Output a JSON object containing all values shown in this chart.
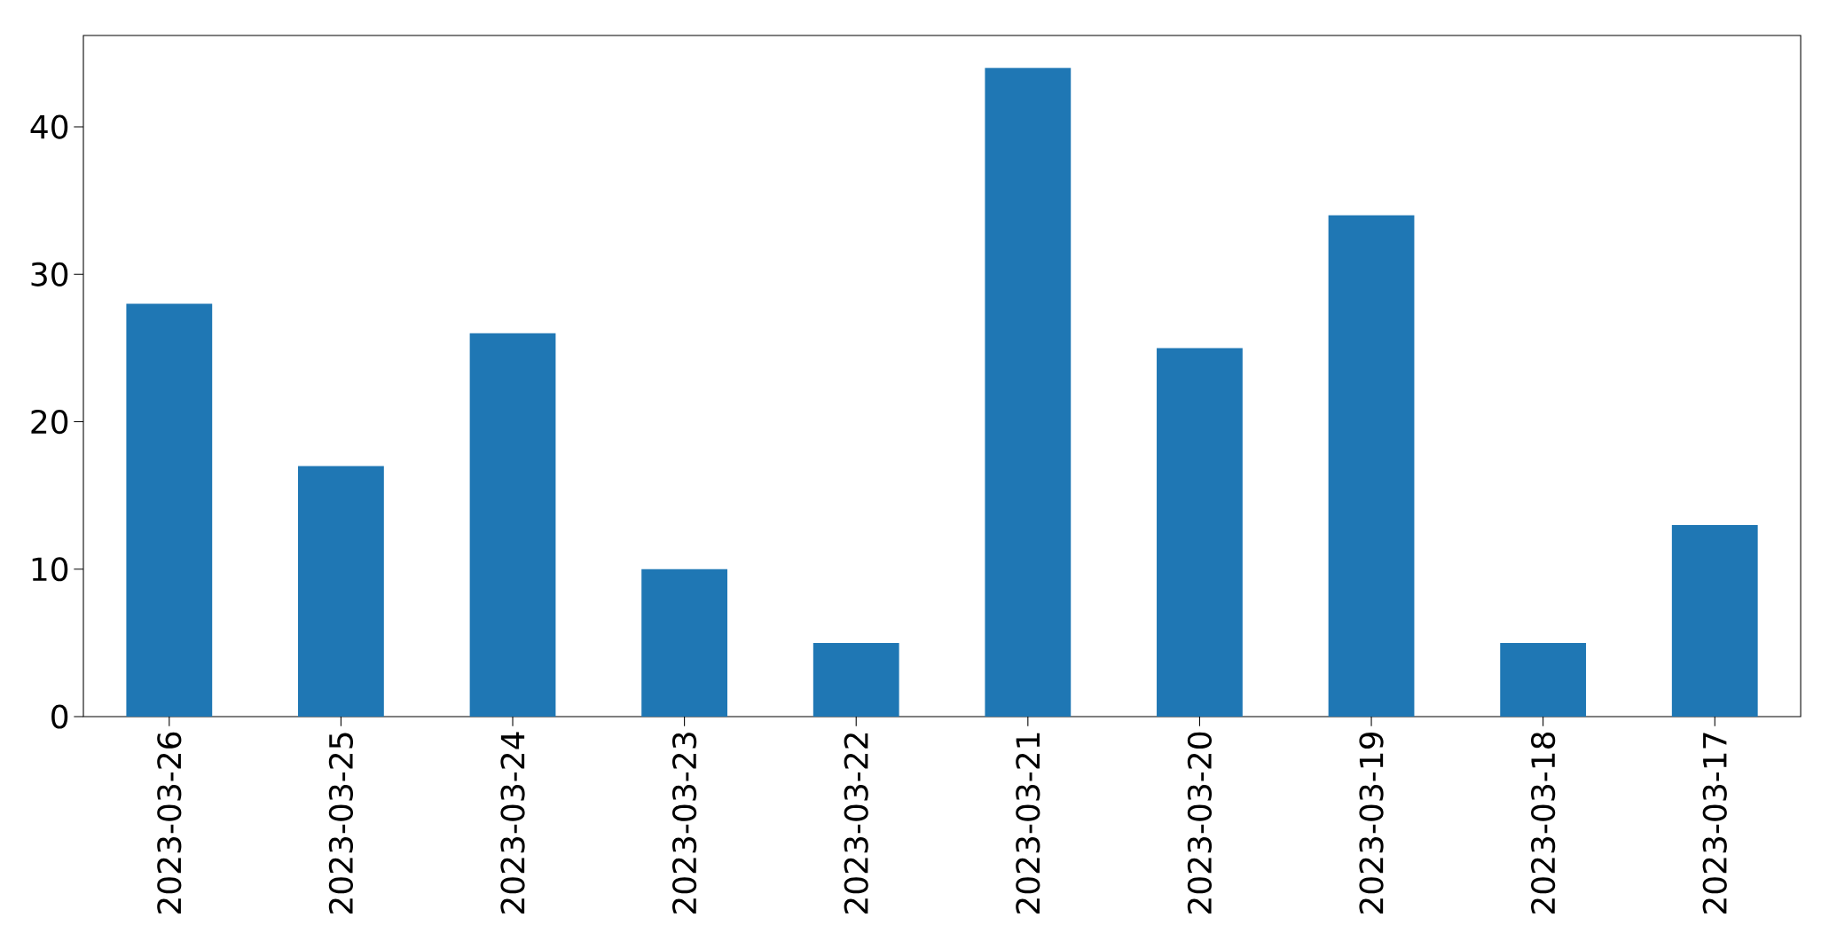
{
  "chart_data": {
    "type": "bar",
    "categories": [
      "2023-03-26",
      "2023-03-25",
      "2023-03-24",
      "2023-03-23",
      "2023-03-22",
      "2023-03-21",
      "2023-03-20",
      "2023-03-19",
      "2023-03-18",
      "2023-03-17"
    ],
    "values": [
      28,
      17,
      26,
      10,
      5,
      44,
      25,
      34,
      5,
      13
    ],
    "color": "#1f77b4",
    "ylim": [
      0,
      46.2
    ],
    "yticks": [
      0,
      10,
      20,
      30,
      40
    ]
  }
}
